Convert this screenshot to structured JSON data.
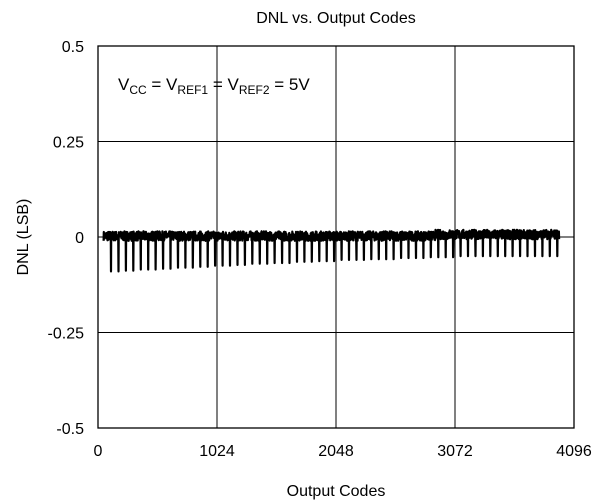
{
  "chart_data": {
    "type": "line",
    "title": "DNL vs. Output Codes",
    "xlabel": "Output Codes",
    "ylabel": "DNL (LSB)",
    "xlim": [
      0,
      4096
    ],
    "ylim": [
      -0.5,
      0.5
    ],
    "x_ticks": [
      0,
      1024,
      2048,
      3072,
      4096
    ],
    "x_tick_labels": [
      "0",
      "1024",
      "2048",
      "3072",
      "4096"
    ],
    "y_ticks": [
      0.5,
      0.25,
      0,
      -0.25,
      -0.5
    ],
    "y_tick_labels": [
      "0.5",
      "0.25",
      "0",
      "-0.25",
      "-0.5"
    ],
    "grid": true,
    "annotation": {
      "parts": [
        {
          "text": "V",
          "sub": false
        },
        {
          "text": "CC",
          "sub": true
        },
        {
          "text": " = V",
          "sub": false
        },
        {
          "text": "REF1",
          "sub": true
        },
        {
          "text": " = V",
          "sub": false
        },
        {
          "text": "REF2",
          "sub": true
        },
        {
          "text": " = 5V",
          "sub": false
        }
      ]
    },
    "series": [
      {
        "data_x_range": [
          48,
          3968
        ],
        "baseline_band": [
          -0.01,
          0.015
        ],
        "spike_period": 64,
        "spike_min": [
          -0.095,
          -0.09,
          -0.09,
          -0.088,
          -0.088,
          -0.085,
          -0.085,
          -0.085,
          -0.083,
          -0.083,
          -0.08,
          -0.08,
          -0.08,
          -0.078,
          -0.078,
          -0.075,
          -0.075,
          -0.075,
          -0.073,
          -0.073,
          -0.07,
          -0.07,
          -0.07,
          -0.068,
          -0.068,
          -0.068,
          -0.065,
          -0.065,
          -0.065,
          -0.063,
          -0.063,
          -0.063,
          -0.06,
          -0.06,
          -0.06,
          -0.06,
          -0.058,
          -0.058,
          -0.058,
          -0.058,
          -0.055,
          -0.055,
          -0.055,
          -0.055,
          -0.053,
          -0.053,
          -0.053,
          -0.053,
          -0.05,
          -0.05,
          -0.05,
          -0.05,
          -0.05,
          -0.05,
          -0.05,
          -0.05,
          -0.05,
          -0.05,
          -0.05,
          -0.05,
          -0.05,
          -0.05
        ]
      }
    ]
  }
}
